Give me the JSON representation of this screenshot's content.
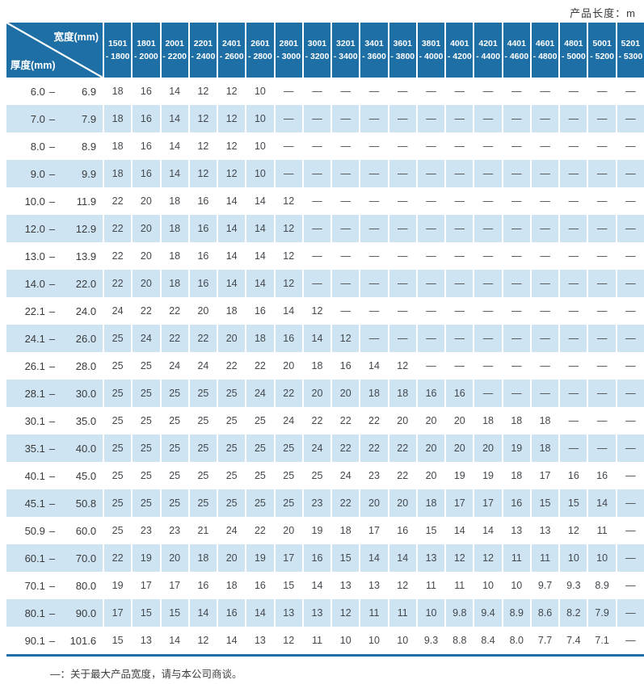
{
  "page": {
    "product_length_label": "产品长度：m",
    "footnote": "—：关于最大产品宽度，请与本公司商谈。"
  },
  "colors": {
    "header_bg": "#1e6fa5",
    "band_bg": "#cee4f3",
    "header_text": "#ffffff",
    "cell_text": "#44484d"
  },
  "table": {
    "corner": {
      "width_label": "宽度(mm)",
      "thickness_label": "厚度(mm)"
    },
    "width_ranges": [
      {
        "lo": "1501",
        "hi": "- 1800"
      },
      {
        "lo": "1801",
        "hi": "- 2000"
      },
      {
        "lo": "2001",
        "hi": "- 2200"
      },
      {
        "lo": "2201",
        "hi": "- 2400"
      },
      {
        "lo": "2401",
        "hi": "- 2600"
      },
      {
        "lo": "2601",
        "hi": "- 2800"
      },
      {
        "lo": "2801",
        "hi": "- 3000"
      },
      {
        "lo": "3001",
        "hi": "- 3200"
      },
      {
        "lo": "3201",
        "hi": "- 3400"
      },
      {
        "lo": "3401",
        "hi": "- 3600"
      },
      {
        "lo": "3601",
        "hi": "- 3800"
      },
      {
        "lo": "3801",
        "hi": "- 4000"
      },
      {
        "lo": "4001",
        "hi": "- 4200"
      },
      {
        "lo": "4201",
        "hi": "- 4400"
      },
      {
        "lo": "4401",
        "hi": "- 4600"
      },
      {
        "lo": "4601",
        "hi": "- 4800"
      },
      {
        "lo": "4801",
        "hi": "- 5000"
      },
      {
        "lo": "5001",
        "hi": "- 5200"
      },
      {
        "lo": "5201",
        "hi": "- 5300"
      }
    ],
    "thickness_rows": [
      {
        "min": "6.0",
        "max": "6.9",
        "values": [
          "18",
          "16",
          "14",
          "12",
          "12",
          "10",
          "—",
          "—",
          "—",
          "—",
          "—",
          "—",
          "—",
          "—",
          "—",
          "—",
          "—",
          "—",
          "—"
        ]
      },
      {
        "min": "7.0",
        "max": "7.9",
        "values": [
          "18",
          "16",
          "14",
          "12",
          "12",
          "10",
          "—",
          "—",
          "—",
          "—",
          "—",
          "—",
          "—",
          "—",
          "—",
          "—",
          "—",
          "—",
          "—"
        ]
      },
      {
        "min": "8.0",
        "max": "8.9",
        "values": [
          "18",
          "16",
          "14",
          "12",
          "12",
          "10",
          "—",
          "—",
          "—",
          "—",
          "—",
          "—",
          "—",
          "—",
          "—",
          "—",
          "—",
          "—",
          "—"
        ]
      },
      {
        "min": "9.0",
        "max": "9.9",
        "values": [
          "18",
          "16",
          "14",
          "12",
          "12",
          "10",
          "—",
          "—",
          "—",
          "—",
          "—",
          "—",
          "—",
          "—",
          "—",
          "—",
          "—",
          "—",
          "—"
        ]
      },
      {
        "min": "10.0",
        "max": "11.9",
        "values": [
          "22",
          "20",
          "18",
          "16",
          "14",
          "14",
          "12",
          "—",
          "—",
          "—",
          "—",
          "—",
          "—",
          "—",
          "—",
          "—",
          "—",
          "—",
          "—"
        ]
      },
      {
        "min": "12.0",
        "max": "12.9",
        "values": [
          "22",
          "20",
          "18",
          "16",
          "14",
          "14",
          "12",
          "—",
          "—",
          "—",
          "—",
          "—",
          "—",
          "—",
          "—",
          "—",
          "—",
          "—",
          "—"
        ]
      },
      {
        "min": "13.0",
        "max": "13.9",
        "values": [
          "22",
          "20",
          "18",
          "16",
          "14",
          "14",
          "12",
          "—",
          "—",
          "—",
          "—",
          "—",
          "—",
          "—",
          "—",
          "—",
          "—",
          "—",
          "—"
        ]
      },
      {
        "min": "14.0",
        "max": "22.0",
        "values": [
          "22",
          "20",
          "18",
          "16",
          "14",
          "14",
          "12",
          "—",
          "—",
          "—",
          "—",
          "—",
          "—",
          "—",
          "—",
          "—",
          "—",
          "—",
          "—"
        ]
      },
      {
        "min": "22.1",
        "max": "24.0",
        "values": [
          "24",
          "22",
          "22",
          "20",
          "18",
          "16",
          "14",
          "12",
          "—",
          "—",
          "—",
          "—",
          "—",
          "—",
          "—",
          "—",
          "—",
          "—",
          "—"
        ]
      },
      {
        "min": "24.1",
        "max": "26.0",
        "values": [
          "25",
          "24",
          "22",
          "22",
          "20",
          "18",
          "16",
          "14",
          "12",
          "—",
          "—",
          "—",
          "—",
          "—",
          "—",
          "—",
          "—",
          "—",
          "—"
        ]
      },
      {
        "min": "26.1",
        "max": "28.0",
        "values": [
          "25",
          "25",
          "24",
          "24",
          "22",
          "22",
          "20",
          "18",
          "16",
          "14",
          "12",
          "—",
          "—",
          "—",
          "—",
          "—",
          "—",
          "—",
          "—"
        ]
      },
      {
        "min": "28.1",
        "max": "30.0",
        "values": [
          "25",
          "25",
          "25",
          "25",
          "25",
          "24",
          "22",
          "20",
          "20",
          "18",
          "18",
          "16",
          "16",
          "—",
          "—",
          "—",
          "—",
          "—",
          "—"
        ]
      },
      {
        "min": "30.1",
        "max": "35.0",
        "values": [
          "25",
          "25",
          "25",
          "25",
          "25",
          "25",
          "24",
          "22",
          "22",
          "22",
          "20",
          "20",
          "20",
          "18",
          "18",
          "18",
          "—",
          "—",
          "—"
        ]
      },
      {
        "min": "35.1",
        "max": "40.0",
        "values": [
          "25",
          "25",
          "25",
          "25",
          "25",
          "25",
          "25",
          "24",
          "22",
          "22",
          "22",
          "20",
          "20",
          "20",
          "19",
          "18",
          "—",
          "—",
          "—"
        ]
      },
      {
        "min": "40.1",
        "max": "45.0",
        "values": [
          "25",
          "25",
          "25",
          "25",
          "25",
          "25",
          "25",
          "25",
          "24",
          "23",
          "22",
          "20",
          "19",
          "19",
          "18",
          "17",
          "16",
          "16",
          "—"
        ]
      },
      {
        "min": "45.1",
        "max": "50.8",
        "values": [
          "25",
          "25",
          "25",
          "25",
          "25",
          "25",
          "25",
          "23",
          "22",
          "20",
          "20",
          "18",
          "17",
          "17",
          "16",
          "15",
          "15",
          "14",
          "—"
        ]
      },
      {
        "min": "50.9",
        "max": "60.0",
        "values": [
          "25",
          "23",
          "23",
          "21",
          "24",
          "22",
          "20",
          "19",
          "18",
          "17",
          "16",
          "15",
          "14",
          "14",
          "13",
          "13",
          "12",
          "11",
          "—"
        ]
      },
      {
        "min": "60.1",
        "max": "70.0",
        "values": [
          "22",
          "19",
          "20",
          "18",
          "20",
          "19",
          "17",
          "16",
          "15",
          "14",
          "14",
          "13",
          "12",
          "12",
          "11",
          "11",
          "10",
          "10",
          "—"
        ]
      },
      {
        "min": "70.1",
        "max": "80.0",
        "values": [
          "19",
          "17",
          "17",
          "16",
          "18",
          "16",
          "15",
          "14",
          "13",
          "13",
          "12",
          "11",
          "11",
          "10",
          "10",
          "9.7",
          "9.3",
          "8.9",
          "—"
        ]
      },
      {
        "min": "80.1",
        "max": "90.0",
        "values": [
          "17",
          "15",
          "15",
          "14",
          "16",
          "14",
          "13",
          "13",
          "12",
          "11",
          "11",
          "10",
          "9.8",
          "9.4",
          "8.9",
          "8.6",
          "8.2",
          "7.9",
          "—"
        ]
      },
      {
        "min": "90.1",
        "max": "101.6",
        "values": [
          "15",
          "13",
          "14",
          "12",
          "14",
          "13",
          "12",
          "11",
          "10",
          "10",
          "10",
          "9.3",
          "8.8",
          "8.4",
          "8.0",
          "7.7",
          "7.4",
          "7.1",
          "—"
        ]
      }
    ]
  }
}
